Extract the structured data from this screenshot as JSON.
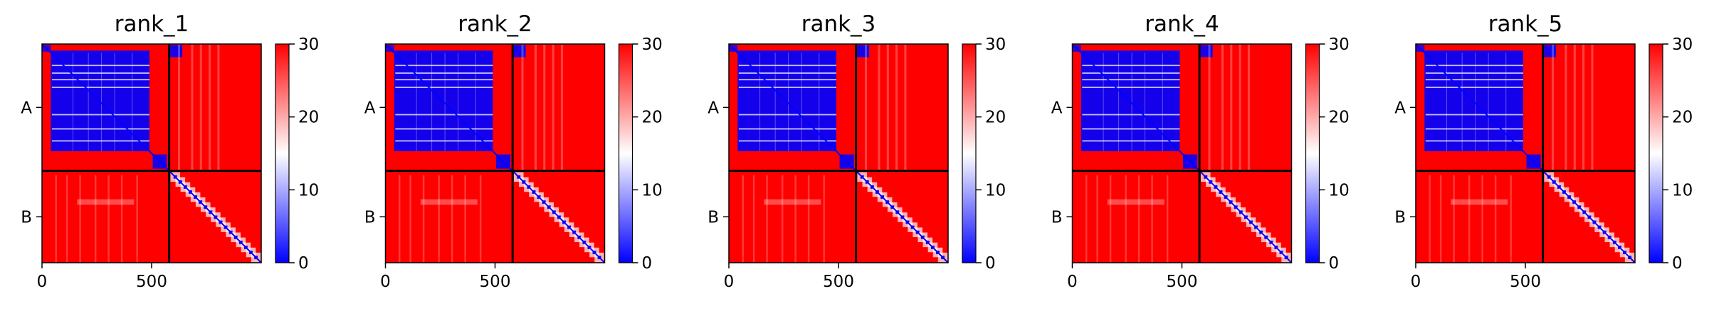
{
  "chart_data": [
    {
      "type": "heatmap",
      "title": "rank_1",
      "xticks": [
        0,
        500
      ],
      "chain_labels": [
        "A",
        "B"
      ],
      "chain_boundary": 580,
      "xlim": [
        0,
        1000
      ],
      "colorbar": {
        "min": 0,
        "max": 30,
        "ticks": [
          0,
          10,
          20,
          30
        ]
      },
      "colorscale": [
        "#0000ff",
        "#ffffff",
        "#ff0000"
      ]
    },
    {
      "type": "heatmap",
      "title": "rank_2",
      "xticks": [
        0,
        500
      ],
      "chain_labels": [
        "A",
        "B"
      ],
      "chain_boundary": 580,
      "xlim": [
        0,
        1000
      ],
      "colorbar": {
        "min": 0,
        "max": 30,
        "ticks": [
          0,
          10,
          20,
          30
        ]
      },
      "colorscale": [
        "#0000ff",
        "#ffffff",
        "#ff0000"
      ]
    },
    {
      "type": "heatmap",
      "title": "rank_3",
      "xticks": [
        0,
        500
      ],
      "chain_labels": [
        "A",
        "B"
      ],
      "chain_boundary": 580,
      "xlim": [
        0,
        1000
      ],
      "colorbar": {
        "min": 0,
        "max": 30,
        "ticks": [
          0,
          10,
          20,
          30
        ]
      },
      "colorscale": [
        "#0000ff",
        "#ffffff",
        "#ff0000"
      ]
    },
    {
      "type": "heatmap",
      "title": "rank_4",
      "xticks": [
        0,
        500
      ],
      "chain_labels": [
        "A",
        "B"
      ],
      "chain_boundary": 580,
      "xlim": [
        0,
        1000
      ],
      "colorbar": {
        "min": 0,
        "max": 30,
        "ticks": [
          0,
          10,
          20,
          30
        ]
      },
      "colorscale": [
        "#0000ff",
        "#ffffff",
        "#ff0000"
      ]
    },
    {
      "type": "heatmap",
      "title": "rank_5",
      "xticks": [
        0,
        500
      ],
      "chain_labels": [
        "A",
        "B"
      ],
      "chain_boundary": 580,
      "xlim": [
        0,
        1000
      ],
      "colorbar": {
        "min": 0,
        "max": 30,
        "ticks": [
          0,
          10,
          20,
          30
        ]
      },
      "colorscale": [
        "#0000ff",
        "#ffffff",
        "#ff0000"
      ]
    }
  ]
}
